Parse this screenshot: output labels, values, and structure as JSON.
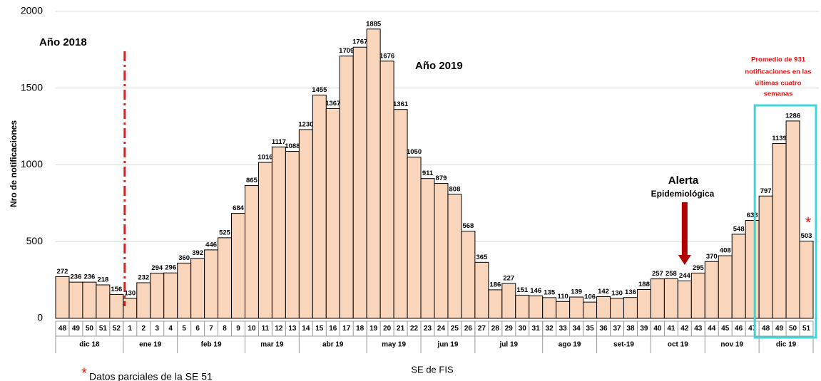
{
  "chart_data": {
    "type": "bar",
    "y_label": "Nro de notificaciones",
    "x_label": "SE de FIS",
    "categories": [
      "48",
      "49",
      "50",
      "51",
      "52",
      "1",
      "2",
      "3",
      "4",
      "5",
      "6",
      "7",
      "8",
      "9",
      "10",
      "11",
      "12",
      "13",
      "14",
      "15",
      "16",
      "17",
      "18",
      "19",
      "20",
      "21",
      "22",
      "23",
      "24",
      "25",
      "26",
      "27",
      "28",
      "29",
      "30",
      "31",
      "32",
      "33",
      "34",
      "35",
      "36",
      "37",
      "38",
      "39",
      "40",
      "41",
      "42",
      "43",
      "44",
      "45",
      "46",
      "47",
      "48",
      "49",
      "50",
      "51"
    ],
    "months": [
      "dic 18",
      "dic 18",
      "dic 18",
      "dic 18",
      "dic 18",
      "ene 19",
      "ene 19",
      "ene 19",
      "ene 19",
      "feb 19",
      "feb 19",
      "feb 19",
      "feb 19",
      "feb 19",
      "mar 19",
      "mar 19",
      "mar 19",
      "mar 19",
      "abr 19",
      "abr 19",
      "abr 19",
      "abr 19",
      "abr 19",
      "may 19",
      "may 19",
      "may 19",
      "may 19",
      "jun 19",
      "jun 19",
      "jun 19",
      "jun 19",
      "jul 19",
      "jul 19",
      "jul 19",
      "jul 19",
      "jul 19",
      "ago 19",
      "ago 19",
      "ago 19",
      "ago 19",
      "set-19",
      "set-19",
      "set-19",
      "set-19",
      "oct 19",
      "oct 19",
      "oct 19",
      "oct 19",
      "nov 19",
      "nov 19",
      "nov 19",
      "nov 19",
      "dic 19",
      "dic 19",
      "dic 19",
      "dic 19"
    ],
    "values": [
      272,
      236,
      236,
      218,
      156,
      130,
      232,
      294,
      296,
      360,
      392,
      446,
      525,
      684,
      865,
      1016,
      1117,
      1088,
      1230,
      1455,
      1367,
      1709,
      1767,
      1885,
      1676,
      1361,
      1050,
      911,
      879,
      808,
      568,
      365,
      186,
      227,
      151,
      146,
      135,
      110,
      139,
      106,
      142,
      130,
      136,
      188,
      257,
      258,
      244,
      295,
      370,
      408,
      548,
      638,
      797,
      1139,
      1286,
      503
    ],
    "color": "#f9d6bb",
    "ylim": [
      0,
      2000
    ],
    "yticks": [
      0,
      500,
      1000,
      1500,
      2000
    ],
    "grid": true,
    "annotations": {
      "year_2018": "Año 2018",
      "year_2019": "Año 2019",
      "alert_1": "Alerta",
      "alert_2": "Epidemiológica",
      "average": [
        "Promedio de  931",
        "notificaciones en las",
        "últimas cuatro",
        "semanas"
      ],
      "asterisk": "*",
      "footnote_mark": "*",
      "footnote": "Datos parciales de la SE 51"
    }
  }
}
